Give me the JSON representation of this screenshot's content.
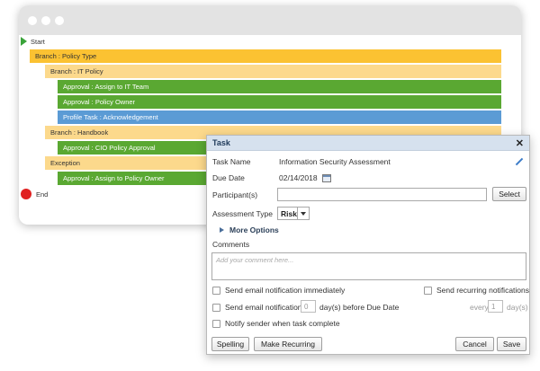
{
  "workflow": {
    "start_label": "Start",
    "end_label": "End",
    "bars": [
      {
        "label": "Branch : Policy Type",
        "kind": "branch"
      },
      {
        "label": "Branch : IT Policy",
        "kind": "sub"
      },
      {
        "label": "Approval : Assign to IT Team",
        "kind": "green"
      },
      {
        "label": "Approval : Policy Owner",
        "kind": "green"
      },
      {
        "label": "Profile Task : Acknowledgement",
        "kind": "blue"
      },
      {
        "label": "Branch : Handbook",
        "kind": "sub"
      },
      {
        "label": "Approval : CIO Policy Approval",
        "kind": "green"
      },
      {
        "label": "Exception",
        "kind": "sub"
      },
      {
        "label": "Approval : Assign to Policy Owner",
        "kind": "green"
      }
    ]
  },
  "dialog": {
    "title": "Task",
    "close_glyph": "✕",
    "task_name_label": "Task Name",
    "task_name_value": "Information Security Assessment",
    "due_date_label": "Due Date",
    "due_date_value": "02/14/2018",
    "participants_label": "Participant(s)",
    "participants_value": "",
    "select_button": "Select",
    "assessment_type_label": "Assessment Type",
    "assessment_type_value": "Risk",
    "more_options_label": "More Options",
    "comments_label": "Comments",
    "comments_placeholder": "Add your comment here...",
    "email_immediately_label": "Send email notification immediately",
    "recurring_notifications_label": "Send recurring notifications",
    "email_before_prefix": "Send email notification",
    "email_before_days": "0",
    "email_before_suffix": "day(s) before Due Date",
    "every_label": "every",
    "every_value": "1",
    "every_unit": "day(s)",
    "notify_sender_label": "Notify sender when task complete",
    "spelling_button": "Spelling",
    "make_recurring_button": "Make Recurring",
    "cancel_button": "Cancel",
    "save_button": "Save"
  },
  "colors": {
    "branch": "#fbc232",
    "sub": "#fcd98c",
    "green": "#5aa832",
    "blue": "#5b9bd5",
    "end": "#e02020",
    "start": "#3aa33a"
  }
}
